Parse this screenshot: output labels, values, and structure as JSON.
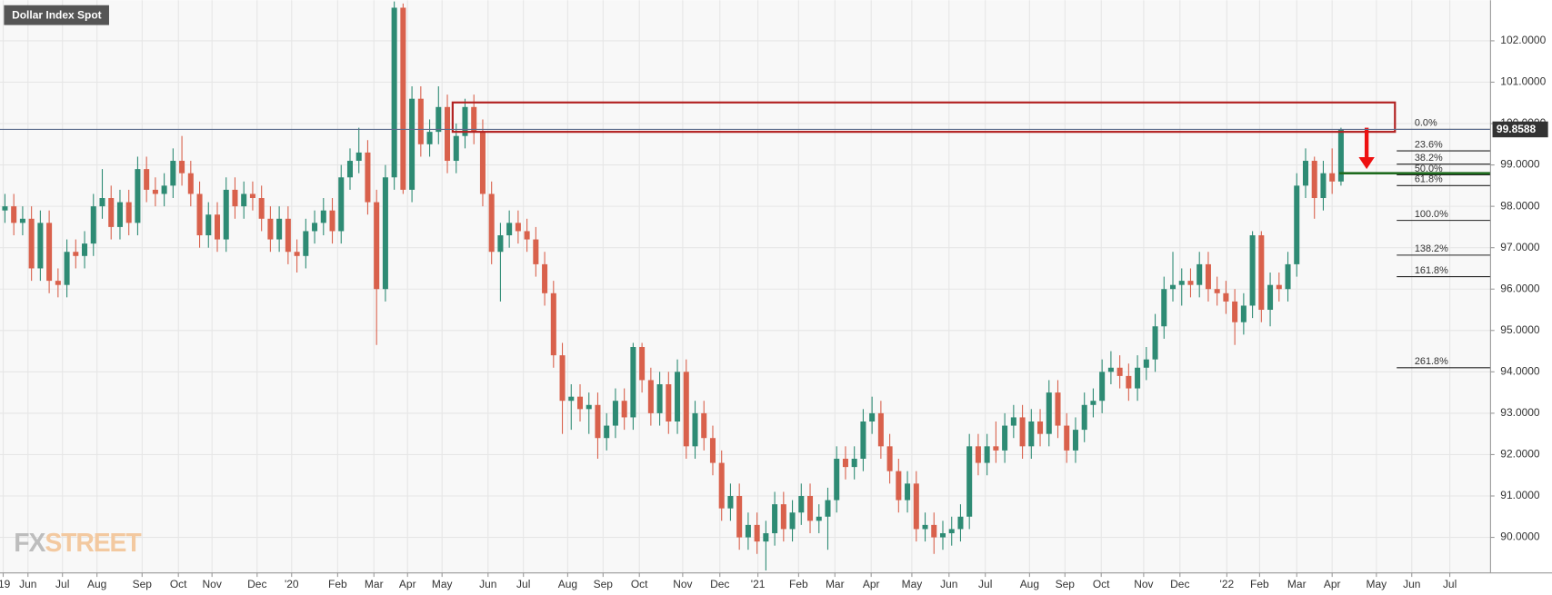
{
  "chart_data": {
    "type": "candlestick",
    "title": "Dollar Index Spot",
    "watermark": [
      "FX",
      "STREET"
    ],
    "up_color": "#2e8b74",
    "down_color": "#d9614c",
    "open": [
      97.9,
      98.0,
      97.6,
      97.7,
      96.5,
      97.6,
      96.2,
      96.1,
      96.9,
      96.8,
      97.1,
      98.0,
      98.2,
      97.5,
      98.1,
      97.6,
      98.9,
      98.4,
      98.3,
      98.5,
      99.1,
      98.8,
      98.3,
      97.3,
      97.8,
      97.2,
      98.4,
      98.0,
      98.3,
      98.2,
      97.7,
      97.2,
      97.7,
      96.9,
      96.8,
      97.4,
      97.6,
      97.9,
      97.4,
      98.7,
      99.1,
      99.3,
      98.1,
      96.0,
      98.7,
      102.8,
      98.4,
      100.6,
      99.5,
      99.8,
      100.4,
      99.1,
      99.7,
      100.4,
      99.8,
      98.3,
      96.9,
      97.3,
      97.6,
      97.4,
      97.2,
      96.6,
      95.9,
      94.4,
      93.3,
      93.4,
      93.1,
      93.2,
      92.4,
      92.7,
      93.3,
      92.9,
      94.6,
      93.8,
      93.0,
      93.7,
      92.8,
      94.0,
      92.2,
      93.0,
      92.4,
      91.8,
      90.7,
      91.0,
      90.0,
      90.3,
      89.9,
      90.1,
      90.8,
      90.2,
      90.6,
      91.0,
      90.4,
      90.5,
      90.9,
      91.9,
      91.7,
      91.9,
      92.8,
      93.0,
      92.2,
      91.6,
      90.9,
      91.3,
      90.2,
      90.3,
      90.0,
      90.1,
      90.2,
      90.5,
      92.2,
      91.8,
      92.2,
      92.1,
      92.7,
      92.9,
      92.2,
      92.8,
      92.5,
      93.5,
      92.7,
      92.1,
      92.6,
      93.2,
      93.3,
      94.0,
      94.1,
      93.9,
      93.6,
      94.1,
      94.3,
      95.1,
      96.0,
      96.1,
      96.2,
      96.1,
      96.6,
      96.0,
      95.9,
      95.7,
      95.2,
      95.6,
      97.3,
      95.5,
      96.1,
      96.0,
      96.6,
      98.5,
      99.1,
      98.2,
      98.8,
      98.6
    ],
    "high": [
      98.3,
      98.3,
      98.0,
      98.0,
      97.9,
      97.9,
      96.5,
      97.2,
      97.2,
      97.4,
      98.3,
      98.9,
      98.5,
      98.4,
      98.4,
      99.2,
      99.2,
      98.7,
      98.8,
      99.4,
      99.7,
      99.1,
      98.6,
      98.1,
      98.1,
      98.7,
      98.7,
      98.6,
      98.6,
      98.5,
      98.0,
      98.0,
      98.0,
      97.2,
      97.7,
      97.9,
      98.2,
      98.2,
      99.0,
      99.4,
      99.9,
      99.6,
      98.4,
      99.0,
      102.95,
      102.9,
      100.9,
      100.9,
      100.1,
      100.9,
      100.7,
      100.0,
      100.6,
      100.7,
      100.1,
      98.6,
      97.6,
      97.9,
      97.9,
      97.7,
      97.5,
      96.9,
      96.2,
      94.7,
      93.7,
      93.7,
      93.5,
      93.5,
      93.0,
      93.6,
      93.6,
      94.7,
      94.7,
      94.1,
      94.0,
      94.0,
      94.3,
      94.3,
      93.3,
      93.3,
      92.7,
      92.1,
      91.3,
      91.3,
      90.6,
      90.6,
      90.4,
      91.1,
      91.1,
      90.9,
      91.3,
      91.3,
      90.8,
      91.2,
      92.2,
      92.2,
      92.2,
      93.1,
      93.4,
      93.3,
      92.5,
      91.9,
      91.6,
      91.6,
      90.6,
      90.6,
      90.4,
      90.5,
      90.8,
      92.5,
      92.5,
      92.5,
      92.8,
      93.0,
      93.2,
      93.2,
      93.1,
      93.1,
      93.8,
      93.8,
      93.0,
      92.9,
      93.5,
      93.6,
      94.3,
      94.5,
      94.4,
      94.2,
      94.4,
      94.6,
      95.4,
      96.3,
      96.9,
      96.5,
      96.5,
      96.9,
      96.9,
      96.3,
      96.2,
      96.0,
      95.9,
      97.4,
      97.4,
      96.4,
      96.4,
      96.9,
      98.8,
      99.4,
      99.2,
      99.1,
      99.4,
      99.9
    ],
    "low": [
      97.6,
      97.3,
      97.3,
      96.2,
      96.2,
      95.9,
      95.8,
      95.8,
      96.5,
      96.5,
      96.8,
      97.7,
      97.2,
      97.2,
      97.3,
      97.3,
      98.1,
      98.0,
      98.0,
      98.2,
      98.5,
      98.0,
      97.0,
      97.0,
      96.9,
      96.9,
      97.7,
      97.7,
      97.9,
      97.4,
      96.9,
      96.9,
      96.6,
      96.4,
      96.5,
      97.1,
      97.3,
      97.1,
      97.1,
      98.4,
      98.8,
      97.8,
      94.65,
      95.7,
      98.4,
      98.3,
      98.1,
      99.2,
      99.2,
      99.5,
      98.8,
      98.8,
      99.4,
      99.5,
      98.0,
      96.6,
      95.7,
      97.0,
      97.1,
      96.9,
      96.3,
      95.6,
      94.1,
      92.5,
      92.6,
      92.8,
      92.5,
      91.9,
      92.1,
      92.4,
      92.6,
      92.6,
      93.5,
      92.7,
      92.7,
      92.5,
      92.5,
      91.9,
      91.9,
      92.1,
      91.5,
      90.4,
      90.4,
      89.7,
      89.7,
      89.6,
      89.2,
      89.8,
      89.9,
      89.9,
      90.3,
      90.1,
      90.1,
      89.7,
      90.6,
      91.4,
      91.4,
      91.6,
      92.5,
      91.9,
      91.3,
      90.6,
      90.6,
      89.9,
      89.9,
      89.6,
      89.7,
      89.8,
      89.9,
      90.2,
      91.5,
      91.5,
      91.8,
      91.8,
      92.4,
      91.9,
      91.9,
      92.2,
      92.2,
      92.4,
      91.8,
      91.8,
      92.3,
      92.9,
      93.0,
      93.7,
      93.6,
      93.3,
      93.3,
      93.8,
      94.0,
      94.8,
      95.7,
      95.6,
      95.8,
      95.8,
      95.7,
      95.6,
      95.4,
      94.65,
      94.9,
      95.3,
      95.2,
      95.1,
      95.7,
      95.7,
      96.3,
      98.2,
      97.7,
      97.9,
      98.3,
      98.5
    ],
    "close": [
      98.0,
      97.6,
      97.7,
      96.5,
      97.6,
      96.2,
      96.1,
      96.9,
      96.8,
      97.1,
      98.0,
      98.2,
      97.5,
      98.1,
      97.6,
      98.9,
      98.4,
      98.3,
      98.5,
      99.1,
      98.8,
      98.3,
      97.3,
      97.8,
      97.2,
      98.4,
      98.0,
      98.3,
      98.2,
      97.7,
      97.2,
      97.7,
      96.9,
      96.8,
      97.4,
      97.6,
      97.9,
      97.4,
      98.7,
      99.1,
      99.3,
      98.1,
      96.0,
      98.7,
      102.8,
      98.4,
      100.6,
      99.5,
      99.8,
      100.4,
      99.1,
      99.7,
      100.4,
      99.8,
      98.3,
      96.9,
      97.3,
      97.6,
      97.4,
      97.2,
      96.6,
      95.9,
      94.4,
      93.3,
      93.4,
      93.1,
      93.2,
      92.4,
      92.7,
      93.3,
      92.9,
      94.6,
      93.8,
      93.0,
      93.7,
      92.8,
      94.0,
      92.2,
      93.0,
      92.4,
      91.8,
      90.7,
      91.0,
      90.0,
      90.3,
      89.9,
      90.1,
      90.8,
      90.2,
      90.6,
      91.0,
      90.4,
      90.5,
      90.9,
      91.9,
      91.7,
      91.9,
      92.8,
      93.0,
      92.2,
      91.6,
      90.9,
      91.3,
      90.2,
      90.3,
      90.0,
      90.1,
      90.2,
      90.5,
      92.2,
      91.8,
      92.2,
      92.1,
      92.7,
      92.9,
      92.2,
      92.8,
      92.5,
      93.5,
      92.7,
      92.1,
      92.6,
      93.2,
      93.3,
      94.0,
      94.1,
      93.9,
      93.6,
      94.1,
      94.3,
      95.1,
      96.0,
      96.1,
      96.2,
      96.1,
      96.6,
      96.0,
      95.9,
      95.7,
      95.2,
      95.6,
      97.3,
      95.5,
      96.1,
      96.0,
      96.6,
      98.5,
      99.1,
      98.2,
      98.8,
      98.6,
      99.86
    ],
    "xlim": [
      -0.56,
      167.9
    ],
    "xticks": [
      {
        "value": -0.2,
        "label": "'19"
      },
      {
        "value": 2.6,
        "label": "Jun"
      },
      {
        "value": 6.5,
        "label": "Jul"
      },
      {
        "value": 10.4,
        "label": "Aug"
      },
      {
        "value": 15.5,
        "label": "Sep"
      },
      {
        "value": 19.6,
        "label": "Oct"
      },
      {
        "value": 23.4,
        "label": "Nov"
      },
      {
        "value": 28.5,
        "label": "Dec"
      },
      {
        "value": 32.4,
        "label": "'20"
      },
      {
        "value": 37.6,
        "label": "Feb"
      },
      {
        "value": 41.7,
        "label": "Mar"
      },
      {
        "value": 45.5,
        "label": "Apr"
      },
      {
        "value": 49.4,
        "label": "May"
      },
      {
        "value": 54.6,
        "label": "Jun"
      },
      {
        "value": 58.6,
        "label": "Jul"
      },
      {
        "value": 63.6,
        "label": "Aug"
      },
      {
        "value": 67.6,
        "label": "Sep"
      },
      {
        "value": 71.7,
        "label": "Oct"
      },
      {
        "value": 76.6,
        "label": "Nov"
      },
      {
        "value": 80.8,
        "label": "Dec"
      },
      {
        "value": 85.1,
        "label": "'21"
      },
      {
        "value": 89.7,
        "label": "Feb"
      },
      {
        "value": 93.8,
        "label": "Mar"
      },
      {
        "value": 97.9,
        "label": "Apr"
      },
      {
        "value": 102.5,
        "label": "May"
      },
      {
        "value": 106.7,
        "label": "Jun"
      },
      {
        "value": 110.8,
        "label": "Jul"
      },
      {
        "value": 115.8,
        "label": "Aug"
      },
      {
        "value": 119.8,
        "label": "Sep"
      },
      {
        "value": 123.9,
        "label": "Oct"
      },
      {
        "value": 128.7,
        "label": "Nov"
      },
      {
        "value": 132.8,
        "label": "Dec"
      },
      {
        "value": 138.1,
        "label": "'22"
      },
      {
        "value": 141.8,
        "label": "Feb"
      },
      {
        "value": 146.0,
        "label": "Mar"
      },
      {
        "value": 150.0,
        "label": "Apr"
      },
      {
        "value": 155.0,
        "label": "May"
      },
      {
        "value": 159.0,
        "label": "Jun"
      },
      {
        "value": 163.3,
        "label": "Jul"
      }
    ],
    "ylim": [
      89.14,
      102.98
    ],
    "yticks": [
      {
        "value": 90,
        "label": "90.0000"
      },
      {
        "value": 91,
        "label": "91.0000"
      },
      {
        "value": 92,
        "label": "92.0000"
      },
      {
        "value": 93,
        "label": "93.0000"
      },
      {
        "value": 94,
        "label": "94.0000"
      },
      {
        "value": 95,
        "label": "95.0000"
      },
      {
        "value": 96,
        "label": "96.0000"
      },
      {
        "value": 97,
        "label": "97.0000"
      },
      {
        "value": 98,
        "label": "98.0000"
      },
      {
        "value": 99,
        "label": "99.0000"
      },
      {
        "value": 100,
        "label": "100.0000"
      },
      {
        "value": 101,
        "label": "101.0000"
      },
      {
        "value": 102,
        "label": "102.0000"
      }
    ],
    "grid": true,
    "last_price": 99.8588,
    "fib_levels": [
      {
        "label": "0.0%",
        "value": 99.86
      },
      {
        "label": "23.6%",
        "value": 99.34
      },
      {
        "label": "38.2%",
        "value": 99.02
      },
      {
        "label": "50.0%",
        "value": 98.76
      },
      {
        "label": "61.8%",
        "value": 98.5
      },
      {
        "label": "100.0%",
        "value": 97.66
      },
      {
        "label": "138.2%",
        "value": 96.82
      },
      {
        "label": "161.8%",
        "value": 96.3
      },
      {
        "label": "261.8%",
        "value": 94.1
      }
    ],
    "fib_xlim": [
      157.3,
      167.9
    ],
    "zone": {
      "xlim": [
        50.6,
        157.1
      ],
      "ylim": [
        99.8,
        100.51
      ],
      "color": "#b22222"
    },
    "support": {
      "value": 98.8,
      "xlim": [
        150.8,
        167.9
      ],
      "color": "#1e6b1e"
    },
    "arrow": {
      "x": 153.9,
      "from": 99.9,
      "to": 98.9,
      "color": "#ee1111"
    }
  }
}
